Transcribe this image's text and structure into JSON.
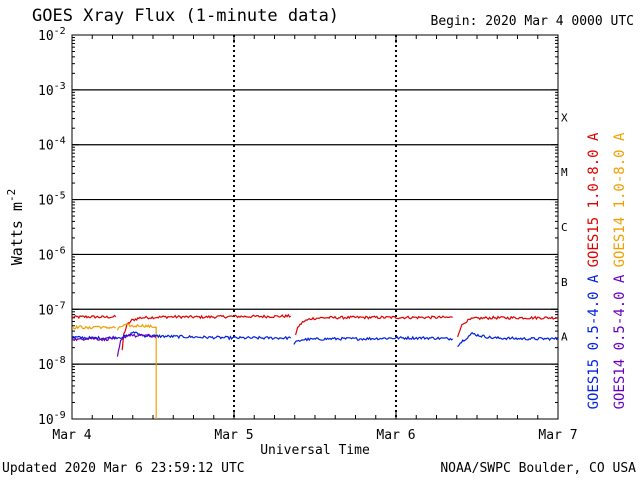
{
  "header": {
    "title": "GOES Xray Flux (1-minute data)",
    "begin_label": "Begin:  2020 Mar 4 0000 UTC"
  },
  "footer": {
    "updated": "Updated 2020 Mar  6 23:59:12 UTC",
    "credit": "NOAA/SWPC Boulder, CO USA"
  },
  "chart_data": {
    "type": "line",
    "title": "GOES Xray Flux (1-minute data)",
    "xlabel": "Universal Time",
    "ylabel": "Watts m",
    "ylabel_superscript": "-2",
    "y_scale": "log",
    "ylim": [
      1e-09,
      0.01
    ],
    "xlim_days": [
      0,
      3
    ],
    "x_ticks": [
      {
        "label": "Mar 4",
        "day": 0
      },
      {
        "label": "Mar 5",
        "day": 1
      },
      {
        "label": "Mar 6",
        "day": 2
      },
      {
        "label": "Mar 7",
        "day": 3
      }
    ],
    "y_ticks": [
      {
        "exp": -9,
        "label": "10",
        "sup": "-9"
      },
      {
        "exp": -8,
        "label": "10",
        "sup": "-8"
      },
      {
        "exp": -7,
        "label": "10",
        "sup": "-7"
      },
      {
        "exp": -6,
        "label": "10",
        "sup": "-6"
      },
      {
        "exp": -5,
        "label": "10",
        "sup": "-5"
      },
      {
        "exp": -4,
        "label": "10",
        "sup": "-4"
      },
      {
        "exp": -3,
        "label": "10",
        "sup": "-3"
      },
      {
        "exp": -2,
        "label": "10",
        "sup": "-2"
      }
    ],
    "flare_classes": [
      {
        "label": "A",
        "exp": -7.5
      },
      {
        "label": "B",
        "exp": -6.5
      },
      {
        "label": "C",
        "exp": -5.5
      },
      {
        "label": "M",
        "exp": -4.5
      },
      {
        "label": "X",
        "exp": -3.5
      }
    ],
    "horizontal_lines_exp": [
      -8,
      -7,
      -6,
      -5,
      -4,
      -3
    ],
    "grid": "dashed day separators",
    "legend_placement": "right, vertical",
    "series": [
      {
        "name": "GOES15 1.0-8.0 A",
        "color": "#e00000",
        "segments": [
          {
            "points": [
              [
                0.0,
                7.2e-08
              ],
              [
                0.1,
                7.3e-08
              ],
              [
                0.2,
                7.2e-08
              ],
              [
                0.27,
                7.3e-08
              ]
            ]
          },
          {
            "points": [
              [
                0.31,
                1.8e-08
              ],
              [
                0.32,
                3.5e-08
              ],
              [
                0.34,
                5.2e-08
              ],
              [
                0.37,
                6.3e-08
              ],
              [
                0.42,
                7e-08
              ],
              [
                0.6,
                7.3e-08
              ],
              [
                0.8,
                7.2e-08
              ],
              [
                1.0,
                7.4e-08
              ],
              [
                1.2,
                7.4e-08
              ],
              [
                1.35,
                7.5e-08
              ]
            ]
          },
          {
            "points": [
              [
                1.38,
                3.5e-08
              ],
              [
                1.4,
                5e-08
              ],
              [
                1.43,
                6e-08
              ],
              [
                1.48,
                6.8e-08
              ],
              [
                1.55,
                7e-08
              ],
              [
                1.8,
                7.1e-08
              ],
              [
                2.0,
                7.1e-08
              ],
              [
                2.2,
                7.1e-08
              ],
              [
                2.35,
                7.1e-08
              ]
            ]
          },
          {
            "points": [
              [
                2.38,
                3.2e-08
              ],
              [
                2.4,
                4.8e-08
              ],
              [
                2.43,
                6e-08
              ],
              [
                2.48,
                6.8e-08
              ],
              [
                2.6,
                7e-08
              ],
              [
                2.8,
                7e-08
              ],
              [
                3.0,
                7e-08
              ]
            ]
          }
        ]
      },
      {
        "name": "GOES14 1.0-8.0 A",
        "color": "#f0a000",
        "segments": [
          {
            "points": [
              [
                0.0,
                4.6e-08
              ],
              [
                0.05,
                4.8e-08
              ],
              [
                0.1,
                4.5e-08
              ],
              [
                0.15,
                4.9e-08
              ],
              [
                0.2,
                4.6e-08
              ],
              [
                0.25,
                4.7e-08
              ],
              [
                0.27,
                4.6e-08
              ]
            ]
          },
          {
            "points": [
              [
                0.28,
                4.2e-08
              ],
              [
                0.3,
                4.8e-08
              ],
              [
                0.33,
                5.2e-08
              ],
              [
                0.38,
                4.9e-08
              ],
              [
                0.42,
                5.1e-08
              ],
              [
                0.5,
                4.8e-08
              ],
              [
                0.52,
                4.8e-08
              ]
            ]
          },
          {
            "points": [
              [
                0.52,
                4.8e-08
              ],
              [
                0.52,
                1e-09
              ]
            ]
          }
        ]
      },
      {
        "name": "GOES15 0.5-4.0 A",
        "color": "#0020e0",
        "segments": [
          {
            "points": [
              [
                0.0,
                3.1e-08
              ],
              [
                0.1,
                3e-08
              ],
              [
                0.2,
                3e-08
              ],
              [
                0.3,
                3.1e-08
              ],
              [
                0.35,
                3.3e-08
              ],
              [
                0.38,
                3.9e-08
              ],
              [
                0.4,
                3.6e-08
              ],
              [
                0.45,
                3.3e-08
              ],
              [
                0.6,
                3.2e-08
              ],
              [
                0.8,
                3.1e-08
              ],
              [
                1.0,
                3e-08
              ],
              [
                1.2,
                3e-08
              ],
              [
                1.35,
                3e-08
              ]
            ]
          },
          {
            "points": [
              [
                1.37,
                2.4e-08
              ],
              [
                1.42,
                2.8e-08
              ],
              [
                1.6,
                2.9e-08
              ],
              [
                1.8,
                2.9e-08
              ],
              [
                2.0,
                3e-08
              ],
              [
                2.2,
                3e-08
              ],
              [
                2.35,
                2.9e-08
              ]
            ]
          },
          {
            "points": [
              [
                2.38,
                2.2e-08
              ],
              [
                2.42,
                2.8e-08
              ],
              [
                2.47,
                3.6e-08
              ],
              [
                2.52,
                3.3e-08
              ],
              [
                2.6,
                3e-08
              ],
              [
                2.8,
                2.9e-08
              ],
              [
                3.0,
                2.9e-08
              ]
            ]
          }
        ]
      },
      {
        "name": "GOES14 0.5-4.0 A",
        "color": "#6a00c0",
        "segments": [
          {
            "points": [
              [
                0.0,
                2.9e-08
              ],
              [
                0.05,
                2.8e-08
              ],
              [
                0.1,
                3e-08
              ],
              [
                0.15,
                2.9e-08
              ],
              [
                0.2,
                2.8e-08
              ],
              [
                0.25,
                3e-08
              ],
              [
                0.27,
                2.9e-08
              ]
            ]
          },
          {
            "points": [
              [
                0.28,
                1.3e-08
              ],
              [
                0.3,
                2.6e-08
              ],
              [
                0.33,
                3.2e-08
              ],
              [
                0.36,
                3.5e-08
              ],
              [
                0.4,
                3.2e-08
              ],
              [
                0.45,
                3.4e-08
              ],
              [
                0.5,
                3.2e-08
              ],
              [
                0.52,
                3.3e-08
              ]
            ]
          }
        ]
      }
    ]
  }
}
